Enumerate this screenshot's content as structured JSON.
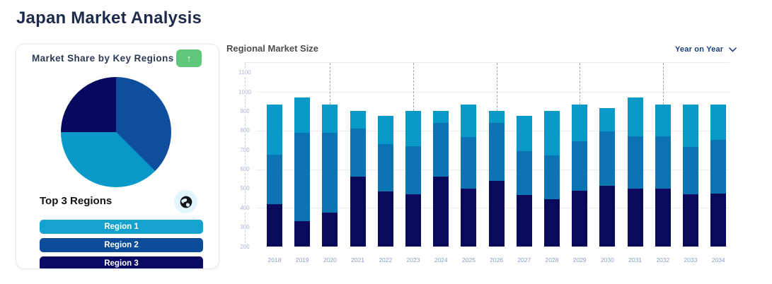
{
  "page": {
    "title": "Japan Market Analysis"
  },
  "market_share_card": {
    "title": "Market Share by Key Regions",
    "up_button": {
      "icon": "up-arrow",
      "glyph": "↑",
      "color": "#5ec77a"
    },
    "top_regions": {
      "title": "Top 3 Regions",
      "icon": "globe"
    },
    "regions": [
      {
        "label": "Region 1",
        "color": "#16a2d0"
      },
      {
        "label": "Region 2",
        "color": "#0c4c99"
      },
      {
        "label": "Region 3",
        "color": "#0a0a63"
      }
    ]
  },
  "market_size": {
    "title": "Regional Market Size",
    "dropdown": {
      "label": "Year on Year",
      "icon": "chevron-down"
    }
  },
  "chart_data": [
    {
      "type": "pie",
      "title": "Market Share by Key Regions",
      "labels_visible": false,
      "slices": [
        {
          "label": "Region 2",
          "color": "#0f4e9d",
          "percent": 37.5,
          "start_deg": 0,
          "end_deg": 135
        },
        {
          "label": "Region 1",
          "color": "#0899c8",
          "percent": 37.5,
          "start_deg": 135,
          "end_deg": 270
        },
        {
          "label": "Region 3",
          "color": "#07085e",
          "percent": 25,
          "start_deg": 270,
          "end_deg": 360
        }
      ]
    },
    {
      "type": "bar",
      "stacked": true,
      "title": "Regional Market Size",
      "xlabel": "",
      "ylabel": "",
      "baseline": 200,
      "ylim": [
        200,
        1150
      ],
      "yticks": [
        200,
        300,
        400,
        500,
        600,
        700,
        800,
        900,
        1000,
        1100
      ],
      "gridlines_at": [
        400,
        600,
        800,
        1000
      ],
      "grid": true,
      "legend_position": "none",
      "dashed_marker_years": [
        "2020",
        "2023",
        "2026",
        "2029",
        "2032"
      ],
      "categories": [
        "2018",
        "2019",
        "2020",
        "2021",
        "2022",
        "2023",
        "2024",
        "2025",
        "2026",
        "2027",
        "2028",
        "2029",
        "2030",
        "2031",
        "2032",
        "2033",
        "2034"
      ],
      "series": [
        {
          "name": "navy",
          "color": "#0a0a5c",
          "values": [
            220,
            130,
            175,
            360,
            285,
            270,
            360,
            300,
            340,
            265,
            245,
            290,
            315,
            300,
            300,
            270,
            275
          ]
        },
        {
          "name": "blue",
          "color": "#0d74b4",
          "values": [
            255,
            460,
            415,
            250,
            245,
            250,
            280,
            265,
            300,
            230,
            225,
            255,
            280,
            270,
            270,
            245,
            275
          ]
        },
        {
          "name": "cyan",
          "color": "#0899c8",
          "values": [
            260,
            180,
            145,
            90,
            145,
            180,
            60,
            170,
            60,
            180,
            230,
            190,
            120,
            200,
            165,
            220,
            185
          ]
        }
      ],
      "bar_totals": [
        935,
        970,
        935,
        900,
        875,
        900,
        900,
        935,
        900,
        875,
        900,
        935,
        915,
        970,
        935,
        935,
        935
      ]
    }
  ]
}
